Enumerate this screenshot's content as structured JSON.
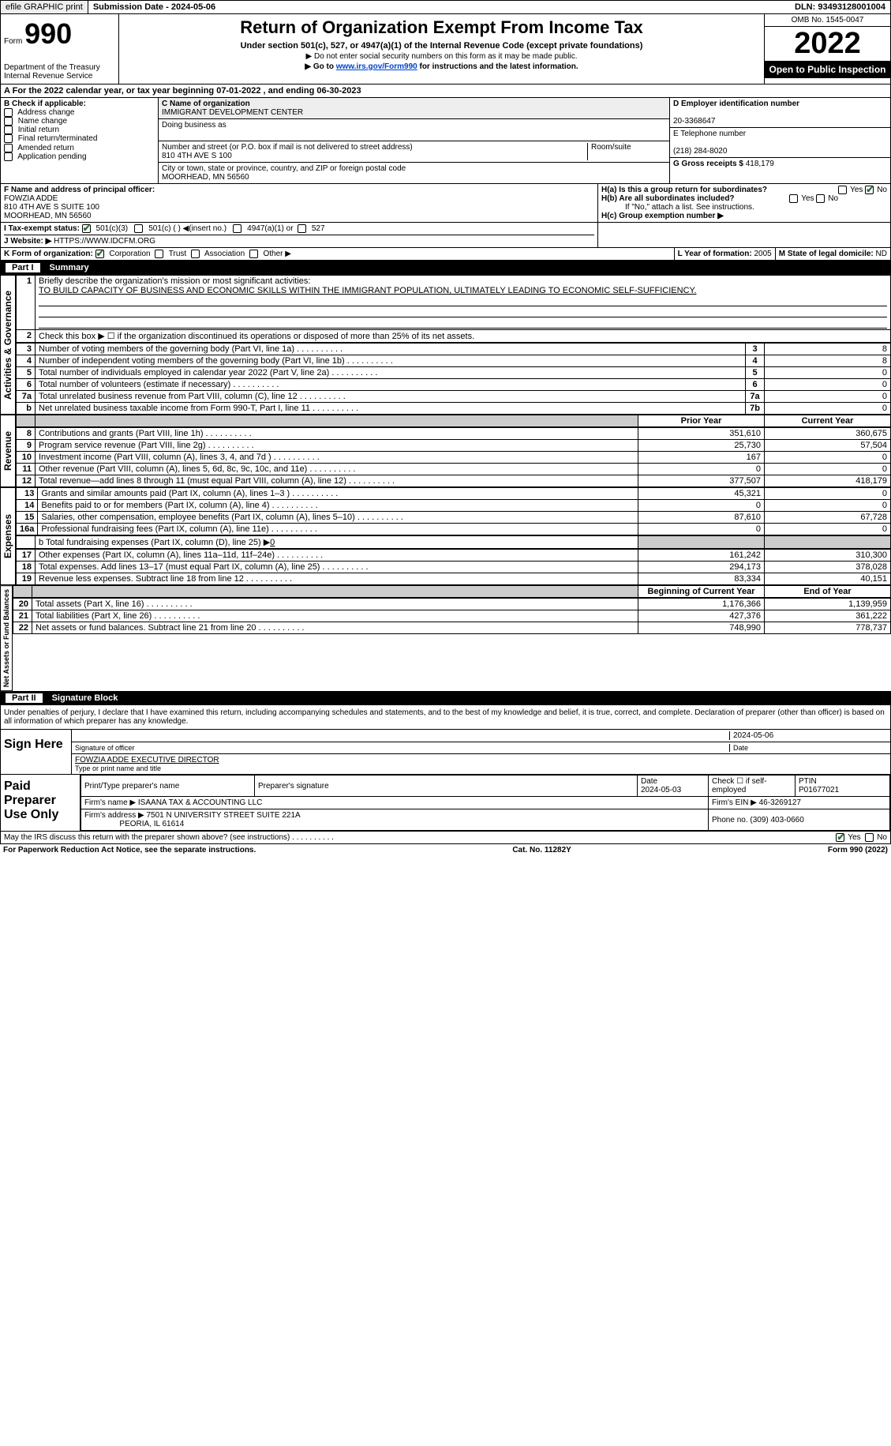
{
  "toprow": {
    "btn_efile": "efile GRAPHIC print",
    "subdate_label": "Submission Date - ",
    "subdate": "2024-05-06",
    "dln_label": "DLN: ",
    "dln": "93493128001004"
  },
  "header": {
    "form_word": "Form",
    "form_no": "990",
    "dept": "Department of the Treasury Internal Revenue Service",
    "title": "Return of Organization Exempt From Income Tax",
    "sub1": "Under section 501(c), 527, or 4947(a)(1) of the Internal Revenue Code (except private foundations)",
    "sub2": "▶ Do not enter social security numbers on this form as it may be made public.",
    "sub3_pre": "▶ Go to ",
    "sub3_link": "www.irs.gov/Form990",
    "sub3_post": " for instructions and the latest information.",
    "omb": "OMB No. 1545-0047",
    "year": "2022",
    "inspect": "Open to Public Inspection"
  },
  "lineA": "For the 2022 calendar year, or tax year beginning 07-01-2022   , and ending 06-30-2023",
  "sectionB": {
    "left_hdr": "B Check if applicable:",
    "opts": [
      "Address change",
      "Name change",
      "Initial return",
      "Final return/terminated",
      "Amended return",
      "Application pending"
    ],
    "c_label": "C Name of organization",
    "c_name": "IMMIGRANT DEVELOPMENT CENTER",
    "dba_label": "Doing business as",
    "street_label": "Number and street (or P.O. box if mail is not delivered to street address)",
    "street": "810 4TH AVE S 100",
    "room_label": "Room/suite",
    "city_label": "City or town, state or province, country, and ZIP or foreign postal code",
    "city": "MOORHEAD, MN  56560",
    "d_label": "D Employer identification number",
    "d_ein": "20-3368647",
    "e_label": "E Telephone number",
    "e_phone": "(218) 284-8020",
    "g_label": "G Gross receipts $ ",
    "g_val": "418,179"
  },
  "sectionF": {
    "f_label": "F  Name and address of principal officer:",
    "f_name": "FOWZIA ADDE",
    "f_addr1": "810 4TH AVE S SUITE 100",
    "f_addr2": "MOORHEAD, MN  56560",
    "h_a": "H(a)  Is this a group return for subordinates?",
    "h_b": "H(b)  Are all subordinates included?",
    "h_note": "If \"No,\" attach a list. See instructions.",
    "h_c": "H(c)  Group exemption number ▶",
    "yes": "Yes",
    "no": "No"
  },
  "sectionI": {
    "i_label": "I   Tax-exempt status:",
    "opt1": "501(c)(3)",
    "opt2": "501(c) (  ) ◀(insert no.)",
    "opt3": "4947(a)(1) or",
    "opt4": "527"
  },
  "sectionJ": {
    "label": "J   Website: ▶",
    "url": "HTTPS://WWW.IDCFM.ORG"
  },
  "sectionK": {
    "k_label": "K Form of organization:",
    "opts": [
      "Corporation",
      "Trust",
      "Association",
      "Other ▶"
    ],
    "l_label": "L Year of formation: ",
    "l_val": "2005",
    "m_label": "M State of legal domicile: ",
    "m_val": "ND"
  },
  "part1": {
    "bar_no": "Part I",
    "bar_title": "Summary",
    "side1": "Activities & Governance",
    "side2": "Revenue",
    "side3": "Expenses",
    "side4": "Net Assets or Fund Balances",
    "line1_label": "Briefly describe the organization's mission or most significant activities:",
    "line1_text": "TO BUILD CAPACITY OF BUSINESS AND ECONOMIC SKILLS WITHIN THE IMMIGRANT POPULATION, ULTIMATELY LEADING TO ECONOMIC SELF-SUFFICIENCY.",
    "line2": "Check this box ▶ ☐ if the organization discontinued its operations or disposed of more than 25% of its net assets.",
    "rows_single": [
      {
        "n": "3",
        "t": "Number of voting members of the governing body (Part VI, line 1a)",
        "box": "3",
        "v": "8"
      },
      {
        "n": "4",
        "t": "Number of independent voting members of the governing body (Part VI, line 1b)",
        "box": "4",
        "v": "8"
      },
      {
        "n": "5",
        "t": "Total number of individuals employed in calendar year 2022 (Part V, line 2a)",
        "box": "5",
        "v": "0"
      },
      {
        "n": "6",
        "t": "Total number of volunteers (estimate if necessary)",
        "box": "6",
        "v": "0"
      },
      {
        "n": "7a",
        "t": "Total unrelated business revenue from Part VIII, column (C), line 12",
        "box": "7a",
        "v": "0"
      },
      {
        "n": "b",
        "t": "Net unrelated business taxable income from Form 990-T, Part I, line 11",
        "box": "7b",
        "v": "0"
      }
    ],
    "hdr_prior": "Prior Year",
    "hdr_curr": "Current Year",
    "rows_rev": [
      {
        "n": "8",
        "t": "Contributions and grants (Part VIII, line 1h)",
        "p": "351,610",
        "c": "360,675"
      },
      {
        "n": "9",
        "t": "Program service revenue (Part VIII, line 2g)",
        "p": "25,730",
        "c": "57,504"
      },
      {
        "n": "10",
        "t": "Investment income (Part VIII, column (A), lines 3, 4, and 7d )",
        "p": "167",
        "c": "0"
      },
      {
        "n": "11",
        "t": "Other revenue (Part VIII, column (A), lines 5, 6d, 8c, 9c, 10c, and 11e)",
        "p": "0",
        "c": "0"
      },
      {
        "n": "12",
        "t": "Total revenue—add lines 8 through 11 (must equal Part VIII, column (A), line 12)",
        "p": "377,507",
        "c": "418,179"
      }
    ],
    "rows_exp": [
      {
        "n": "13",
        "t": "Grants and similar amounts paid (Part IX, column (A), lines 1–3 )",
        "p": "45,321",
        "c": "0"
      },
      {
        "n": "14",
        "t": "Benefits paid to or for members (Part IX, column (A), line 4)",
        "p": "0",
        "c": "0"
      },
      {
        "n": "15",
        "t": "Salaries, other compensation, employee benefits (Part IX, column (A), lines 5–10)",
        "p": "87,610",
        "c": "67,728"
      },
      {
        "n": "16a",
        "t": "Professional fundraising fees (Part IX, column (A), line 11e)",
        "p": "0",
        "c": "0"
      }
    ],
    "line16b_label": "b  Total fundraising expenses (Part IX, column (D), line 25) ▶",
    "line16b_val": "0",
    "rows_exp2": [
      {
        "n": "17",
        "t": "Other expenses (Part IX, column (A), lines 11a–11d, 11f–24e)",
        "p": "161,242",
        "c": "310,300"
      },
      {
        "n": "18",
        "t": "Total expenses. Add lines 13–17 (must equal Part IX, column (A), line 25)",
        "p": "294,173",
        "c": "378,028"
      },
      {
        "n": "19",
        "t": "Revenue less expenses. Subtract line 18 from line 12",
        "p": "83,334",
        "c": "40,151"
      }
    ],
    "hdr_boy": "Beginning of Current Year",
    "hdr_eoy": "End of Year",
    "rows_net": [
      {
        "n": "20",
        "t": "Total assets (Part X, line 16)",
        "p": "1,176,366",
        "c": "1,139,959"
      },
      {
        "n": "21",
        "t": "Total liabilities (Part X, line 26)",
        "p": "427,376",
        "c": "361,222"
      },
      {
        "n": "22",
        "t": "Net assets or fund balances. Subtract line 21 from line 20",
        "p": "748,990",
        "c": "778,737"
      }
    ]
  },
  "part2": {
    "bar_no": "Part II",
    "bar_title": "Signature Block",
    "penalty": "Under penalties of perjury, I declare that I have examined this return, including accompanying schedules and statements, and to the best of my knowledge and belief, it is true, correct, and complete. Declaration of preparer (other than officer) is based on all information of which preparer has any knowledge.",
    "sign_label": "Sign Here",
    "sig_officer": "Signature of officer",
    "sig_date": "2024-05-06",
    "date_label": "Date",
    "name_title": "FOWZIA ADDE  EXECUTIVE DIRECTOR",
    "name_title_label": "Type or print name and title",
    "paid_label": "Paid Preparer Use Only",
    "prep_name_h": "Print/Type preparer's name",
    "prep_sig_h": "Preparer's signature",
    "prep_date_h": "Date",
    "prep_date": "2024-05-03",
    "self_emp": "Check ☐ if self-employed",
    "ptin_h": "PTIN",
    "ptin": "P01677021",
    "firm_name_h": "Firm's name   ▶",
    "firm_name": "ISAANA TAX & ACCOUNTING LLC",
    "firm_ein_h": "Firm's EIN ▶ ",
    "firm_ein": "46-3269127",
    "firm_addr_h": "Firm's address ▶",
    "firm_addr": "7501 N UNIVERSITY STREET SUITE 221A",
    "firm_city": "PEORIA, IL  61614",
    "phone_h": "Phone no. ",
    "phone": "(309) 403-0660",
    "discuss": "May the IRS discuss this return with the preparer shown above? (see instructions)"
  },
  "footer": {
    "pra": "For Paperwork Reduction Act Notice, see the separate instructions.",
    "cat": "Cat. No. 11282Y",
    "form": "Form 990 (2022)"
  }
}
